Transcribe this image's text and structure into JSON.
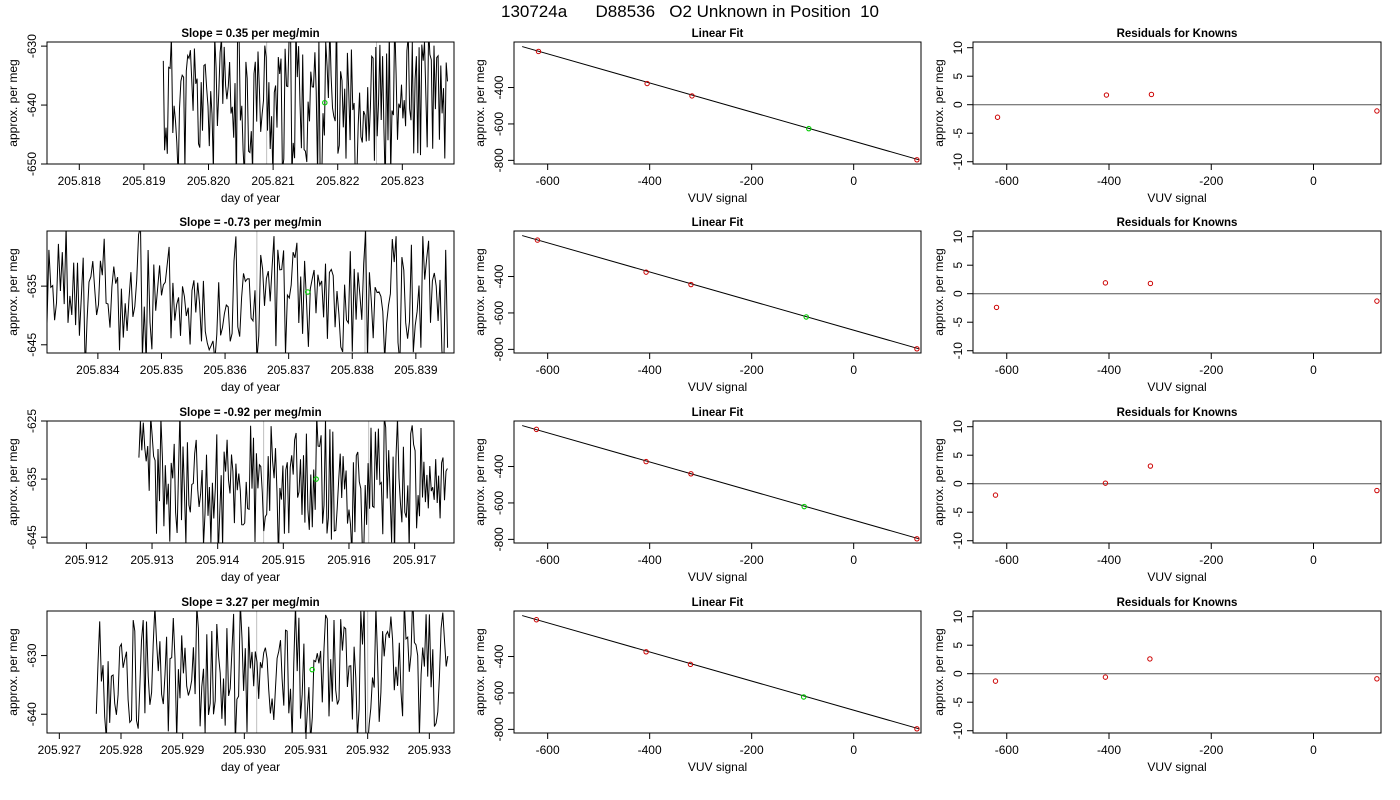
{
  "page_title": "130724a      D88536   O2 Unknown in Position  10",
  "colors": {
    "trace": "#000000",
    "fit_line": "#000000",
    "known_point": "#cc0000",
    "unknown_point": "#00cc00",
    "window_line": "#bfbfbf",
    "zero_line": "#555555"
  },
  "rows": [
    {
      "timeseries": {
        "title": "Slope =  0.35  per meg/min",
        "xlabel": "day of year",
        "ylabel": "approx. per meg",
        "xlim": [
          205.8175,
          205.8238
        ],
        "ylim": [
          -650,
          -629.3
        ],
        "xticks": [
          205.818,
          205.819,
          205.82,
          205.821,
          205.822,
          205.823
        ],
        "xtick_labels": [
          "205.818",
          "205.819",
          "205.820",
          "205.821",
          "205.822",
          "205.823"
        ],
        "yticks": [
          -650,
          -640,
          -630
        ],
        "ytick_labels": [
          "-650",
          "-640",
          "-630"
        ],
        "vlines": [
          205.8209,
          205.8226
        ],
        "marker": {
          "x": 205.8218,
          "y": -639.6
        },
        "trace_start": 205.8193,
        "trace_end": 205.8237,
        "center": -639.5,
        "amplitude": 12,
        "seed": 11
      },
      "fit": {
        "title": "Linear Fit",
        "xlabel": "VUV signal",
        "ylabel": "approx. per meg",
        "xlim": [
          -666,
          132
        ],
        "ylim": [
          -820,
          -150
        ],
        "xticks": [
          -600,
          -400,
          -200,
          0
        ],
        "xtick_labels": [
          "-600",
          "-400",
          "-200",
          "0"
        ],
        "yticks": [
          -800,
          -600,
          -400
        ],
        "ytick_labels": [
          "-800",
          "-600",
          "-400"
        ],
        "line": {
          "x1": -650,
          "y1": -175,
          "x2": 128,
          "y2": -797
        },
        "knowns": [
          {
            "x": -618,
            "y": -202
          },
          {
            "x": -405,
            "y": -378
          },
          {
            "x": -317,
            "y": -446
          },
          {
            "x": 124,
            "y": -797
          }
        ],
        "unknown": {
          "x": -88,
          "y": -626
        }
      },
      "residuals": {
        "title": "Residuals for Knowns",
        "xlabel": "VUV signal",
        "ylabel": "approx. per meg",
        "xlim": [
          -666,
          132
        ],
        "ylim": [
          -10.4,
          11
        ],
        "xticks": [
          -600,
          -400,
          -200,
          0
        ],
        "xtick_labels": [
          "-600",
          "-400",
          "-200",
          "0"
        ],
        "yticks": [
          -10,
          -5,
          0,
          5,
          10
        ],
        "ytick_labels": [
          "-10",
          "-5",
          "0",
          "5",
          "10"
        ],
        "points": [
          {
            "x": -618,
            "y": -2.2
          },
          {
            "x": -405,
            "y": 1.7
          },
          {
            "x": -317,
            "y": 1.8
          },
          {
            "x": 124,
            "y": -1.1
          }
        ]
      }
    },
    {
      "timeseries": {
        "title": "Slope =  -0.73  per meg/min",
        "xlabel": "day of year",
        "ylabel": "approx. per meg",
        "xlim": [
          205.8332,
          205.8396
        ],
        "ylim": [
          -646.4,
          -625.6
        ],
        "xticks": [
          205.834,
          205.835,
          205.836,
          205.837,
          205.838,
          205.839
        ],
        "xtick_labels": [
          "205.834",
          "205.835",
          "205.836",
          "205.837",
          "205.838",
          "205.839"
        ],
        "yticks": [
          -645,
          -635
        ],
        "ytick_labels": [
          "-645",
          "-635"
        ],
        "vlines": [
          205.8365,
          205.8382
        ],
        "marker": {
          "x": 205.8373,
          "y": -636
        },
        "trace_start": 205.8332,
        "trace_end": 205.8395,
        "center": -637,
        "amplitude": 10,
        "seed": 23
      },
      "fit": {
        "title": "Linear Fit",
        "xlabel": "VUV signal",
        "ylabel": "approx. per meg",
        "xlim": [
          -666,
          132
        ],
        "ylim": [
          -820,
          -150
        ],
        "xticks": [
          -600,
          -400,
          -200,
          0
        ],
        "xtick_labels": [
          "-600",
          "-400",
          "-200",
          "0"
        ],
        "yticks": [
          -800,
          -600,
          -400
        ],
        "ytick_labels": [
          "-800",
          "-600",
          "-400"
        ],
        "line": {
          "x1": -650,
          "y1": -175,
          "x2": 128,
          "y2": -797
        },
        "knowns": [
          {
            "x": -620,
            "y": -200
          },
          {
            "x": -407,
            "y": -376
          },
          {
            "x": -319,
            "y": -444
          },
          {
            "x": 124,
            "y": -797
          }
        ],
        "unknown": {
          "x": -93,
          "y": -622
        }
      },
      "residuals": {
        "title": "Residuals for Knowns",
        "xlabel": "VUV signal",
        "ylabel": "approx. per meg",
        "xlim": [
          -666,
          132
        ],
        "ylim": [
          -10.4,
          11
        ],
        "xticks": [
          -600,
          -400,
          -200,
          0
        ],
        "xtick_labels": [
          "-600",
          "-400",
          "-200",
          "0"
        ],
        "yticks": [
          -10,
          -5,
          0,
          5,
          10
        ],
        "ytick_labels": [
          "-10",
          "-5",
          "0",
          "5",
          "10"
        ],
        "points": [
          {
            "x": -620,
            "y": -2.4
          },
          {
            "x": -407,
            "y": 1.9
          },
          {
            "x": -319,
            "y": 1.8
          },
          {
            "x": 124,
            "y": -1.3
          }
        ]
      }
    },
    {
      "timeseries": {
        "title": "Slope =  -0.92  per meg/min",
        "xlabel": "day of year",
        "ylabel": "approx. per meg",
        "xlim": [
          205.9114,
          205.9176
        ],
        "ylim": [
          -646,
          -625
        ],
        "xticks": [
          205.912,
          205.913,
          205.914,
          205.915,
          205.916,
          205.917
        ],
        "xtick_labels": [
          "205.912",
          "205.913",
          "205.914",
          "205.915",
          "205.916",
          "205.917"
        ],
        "yticks": [
          -645,
          -635,
          -625
        ],
        "ytick_labels": [
          "-645",
          "-635",
          "-625"
        ],
        "vlines": [
          205.9147,
          205.9163
        ],
        "marker": {
          "x": 205.9155,
          "y": -635
        },
        "trace_start": 205.9128,
        "trace_end": 205.9175,
        "center": -636,
        "amplitude": 10,
        "seed": 37
      },
      "fit": {
        "title": "Linear Fit",
        "xlabel": "VUV signal",
        "ylabel": "approx. per meg",
        "xlim": [
          -666,
          132
        ],
        "ylim": [
          -820,
          -150
        ],
        "xticks": [
          -600,
          -400,
          -200,
          0
        ],
        "xtick_labels": [
          "-600",
          "-400",
          "-200",
          "0"
        ],
        "yticks": [
          -800,
          -600,
          -400
        ],
        "ytick_labels": [
          "-800",
          "-600",
          "-400"
        ],
        "line": {
          "x1": -650,
          "y1": -175,
          "x2": 128,
          "y2": -797
        },
        "knowns": [
          {
            "x": -622,
            "y": -196
          },
          {
            "x": -407,
            "y": -373
          },
          {
            "x": -319,
            "y": -440
          },
          {
            "x": 124,
            "y": -797
          }
        ],
        "unknown": {
          "x": -97,
          "y": -620
        }
      },
      "residuals": {
        "title": "Residuals for Knowns",
        "xlabel": "VUV signal",
        "ylabel": "approx. per meg",
        "xlim": [
          -666,
          132
        ],
        "ylim": [
          -10.4,
          11
        ],
        "xticks": [
          -600,
          -400,
          -200,
          0
        ],
        "xtick_labels": [
          "-600",
          "-400",
          "-200",
          "0"
        ],
        "yticks": [
          -10,
          -5,
          0,
          5,
          10
        ],
        "ytick_labels": [
          "-10",
          "-5",
          "0",
          "5",
          "10"
        ],
        "points": [
          {
            "x": -622,
            "y": -2
          },
          {
            "x": -407,
            "y": 0.1
          },
          {
            "x": -319,
            "y": 3.1
          },
          {
            "x": 124,
            "y": -1.2
          }
        ]
      }
    },
    {
      "timeseries": {
        "title": "Slope =  3.27  per meg/min",
        "xlabel": "day of year",
        "ylabel": "approx. per meg",
        "xlim": [
          205.9268,
          205.9334
        ],
        "ylim": [
          -643.2,
          -622.4
        ],
        "xticks": [
          205.927,
          205.928,
          205.929,
          205.93,
          205.931,
          205.932,
          205.933
        ],
        "xtick_labels": [
          "205.927",
          "205.928",
          "205.929",
          "205.930",
          "205.931",
          "205.932",
          "205.933"
        ],
        "yticks": [
          -640,
          -630
        ],
        "ytick_labels": [
          "-640",
          "-630"
        ],
        "vlines": [
          205.9302,
          205.932
        ],
        "marker": {
          "x": 205.9311,
          "y": -632.4
        },
        "trace_start": 205.9276,
        "trace_end": 205.9333,
        "center": -633,
        "amplitude": 10,
        "seed": 53
      },
      "fit": {
        "title": "Linear Fit",
        "xlabel": "VUV signal",
        "ylabel": "approx. per meg",
        "xlim": [
          -666,
          132
        ],
        "ylim": [
          -820,
          -150
        ],
        "xticks": [
          -600,
          -400,
          -200,
          0
        ],
        "xtick_labels": [
          "-600",
          "-400",
          "-200",
          "0"
        ],
        "yticks": [
          -800,
          -600,
          -400
        ],
        "ytick_labels": [
          "-800",
          "-600",
          "-400"
        ],
        "line": {
          "x1": -650,
          "y1": -175,
          "x2": 128,
          "y2": -797
        },
        "knowns": [
          {
            "x": -622,
            "y": -198
          },
          {
            "x": -407,
            "y": -374
          },
          {
            "x": -320,
            "y": -443
          },
          {
            "x": 124,
            "y": -797
          }
        ],
        "unknown": {
          "x": -98,
          "y": -622
        }
      },
      "residuals": {
        "title": "Residuals for Knowns",
        "xlabel": "VUV signal",
        "ylabel": "approx. per meg",
        "xlim": [
          -666,
          132
        ],
        "ylim": [
          -10.4,
          11
        ],
        "xticks": [
          -600,
          -400,
          -200,
          0
        ],
        "xtick_labels": [
          "-600",
          "-400",
          "-200",
          "0"
        ],
        "yticks": [
          -10,
          -5,
          0,
          5,
          10
        ],
        "ytick_labels": [
          "-10",
          "-5",
          "0",
          "5",
          "10"
        ],
        "points": [
          {
            "x": -622,
            "y": -1.3
          },
          {
            "x": -407,
            "y": -0.6
          },
          {
            "x": -320,
            "y": 2.6
          },
          {
            "x": 124,
            "y": -0.9
          }
        ]
      }
    }
  ],
  "chart_data": [
    {
      "type": "line",
      "title": "Slope =  0.35  per meg/min",
      "xlabel": "day of year",
      "ylabel": "approx. per meg",
      "xlim": [
        205.8175,
        205.8238
      ],
      "ylim": [
        -650,
        -629.3
      ],
      "grid": false
    },
    {
      "type": "scatter",
      "title": "Linear Fit",
      "xlabel": "VUV signal",
      "ylabel": "approx. per meg",
      "x": [
        -618,
        -405,
        -317,
        124
      ],
      "y": [
        -202,
        -378,
        -446,
        -797
      ],
      "unknown": {
        "x": -88,
        "y": -626
      },
      "grid": false
    },
    {
      "type": "scatter",
      "title": "Residuals for Knowns",
      "xlabel": "VUV signal",
      "ylabel": "approx. per meg",
      "x": [
        -618,
        -405,
        -317,
        124
      ],
      "y": [
        -2.2,
        1.7,
        1.8,
        -1.1
      ],
      "grid": false
    },
    {
      "type": "line",
      "title": "Slope =  -0.73  per meg/min",
      "xlabel": "day of year",
      "ylabel": "approx. per meg",
      "xlim": [
        205.8332,
        205.8396
      ],
      "ylim": [
        -646.4,
        -625.6
      ],
      "grid": false
    },
    {
      "type": "scatter",
      "title": "Linear Fit",
      "xlabel": "VUV signal",
      "ylabel": "approx. per meg",
      "x": [
        -620,
        -407,
        -319,
        124
      ],
      "y": [
        -200,
        -376,
        -444,
        -797
      ],
      "unknown": {
        "x": -93,
        "y": -622
      },
      "grid": false
    },
    {
      "type": "scatter",
      "title": "Residuals for Knowns",
      "xlabel": "VUV signal",
      "ylabel": "approx. per meg",
      "x": [
        -620,
        -407,
        -319,
        124
      ],
      "y": [
        -2.4,
        1.9,
        1.8,
        -1.3
      ],
      "grid": false
    },
    {
      "type": "line",
      "title": "Slope =  -0.92  per meg/min",
      "xlabel": "day of year",
      "ylabel": "approx. per meg",
      "xlim": [
        205.9114,
        205.9176
      ],
      "ylim": [
        -646,
        -625
      ],
      "grid": false
    },
    {
      "type": "scatter",
      "title": "Linear Fit",
      "xlabel": "VUV signal",
      "ylabel": "approx. per meg",
      "x": [
        -622,
        -407,
        -319,
        124
      ],
      "y": [
        -196,
        -373,
        -440,
        -797
      ],
      "unknown": {
        "x": -97,
        "y": -620
      },
      "grid": false
    },
    {
      "type": "scatter",
      "title": "Residuals for Knowns",
      "xlabel": "VUV signal",
      "ylabel": "approx. per meg",
      "x": [
        -622,
        -407,
        -319,
        124
      ],
      "y": [
        -2,
        0.1,
        3.1,
        -1.2
      ],
      "grid": false
    },
    {
      "type": "line",
      "title": "Slope =  3.27  per meg/min",
      "xlabel": "day of year",
      "ylabel": "approx. per meg",
      "xlim": [
        205.9268,
        205.9334
      ],
      "ylim": [
        -643.2,
        -622.4
      ],
      "grid": false
    },
    {
      "type": "scatter",
      "title": "Linear Fit",
      "xlabel": "VUV signal",
      "ylabel": "approx. per meg",
      "x": [
        -622,
        -407,
        -320,
        124
      ],
      "y": [
        -198,
        -374,
        -443,
        -797
      ],
      "unknown": {
        "x": -98,
        "y": -622
      },
      "grid": false
    },
    {
      "type": "scatter",
      "title": "Residuals for Knowns",
      "xlabel": "VUV signal",
      "ylabel": "approx. per meg",
      "x": [
        -622,
        -407,
        -320,
        124
      ],
      "y": [
        -1.3,
        -0.6,
        2.6,
        -0.9
      ],
      "grid": false
    }
  ]
}
